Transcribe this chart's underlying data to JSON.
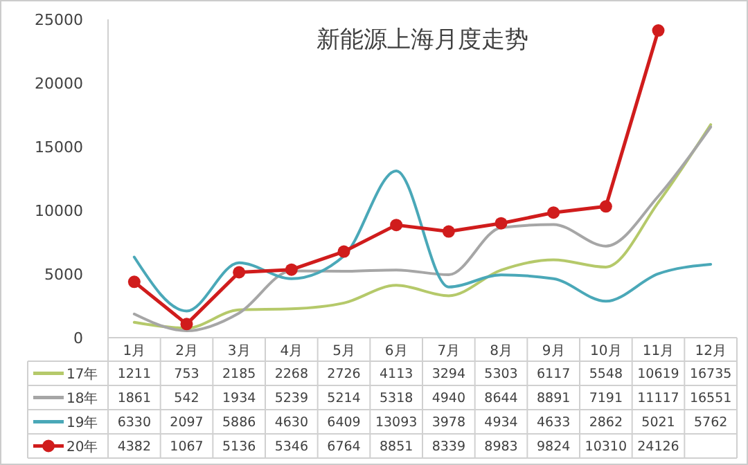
{
  "chart_data": {
    "type": "line",
    "title": "新能源上海月度走势",
    "categories": [
      "1月",
      "2月",
      "3月",
      "4月",
      "5月",
      "6月",
      "7月",
      "8月",
      "9月",
      "10月",
      "11月",
      "12月"
    ],
    "ylim": [
      0,
      25000
    ],
    "yticks": [
      0,
      5000,
      10000,
      15000,
      20000,
      25000
    ],
    "grid": false,
    "legend": "bottom",
    "data_labels": true,
    "series": [
      {
        "name": "17年",
        "color": "#b5c96a",
        "values": [
          1211,
          753,
          2185,
          2268,
          2726,
          4113,
          3294,
          5303,
          6117,
          5548,
          10619,
          16735
        ]
      },
      {
        "name": "18年",
        "color": "#a6a6a6",
        "values": [
          1861,
          542,
          1934,
          5239,
          5214,
          5318,
          4940,
          8644,
          8891,
          7191,
          11117,
          16551
        ]
      },
      {
        "name": "19年",
        "color": "#4aa8b8",
        "values": [
          6330,
          2097,
          5886,
          4630,
          6409,
          13093,
          3978,
          4934,
          4633,
          2862,
          5021,
          5762
        ]
      },
      {
        "name": "20年",
        "color": "#d01c1c",
        "marker": "circle",
        "values": [
          4382,
          1067,
          5136,
          5346,
          6764,
          8851,
          8339,
          8983,
          9824,
          10310,
          24126,
          null
        ]
      }
    ]
  }
}
